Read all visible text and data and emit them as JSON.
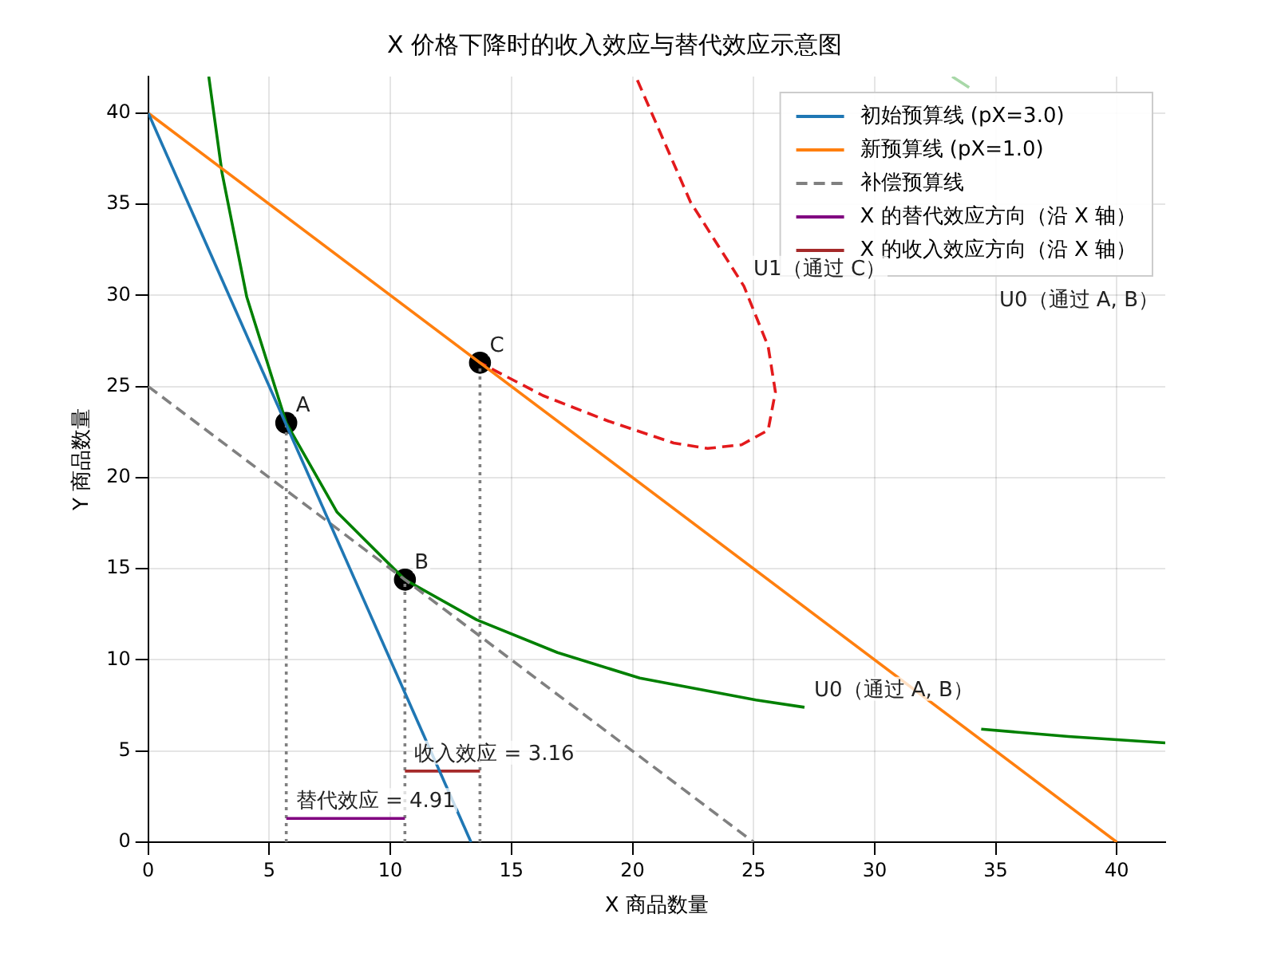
{
  "chart_data": {
    "type": "line",
    "title": "X 价格下降时的收入效应与替代效应示意图",
    "xlabel": "X 商品数量",
    "ylabel": "Y 商品数量",
    "xlim": [
      0,
      42
    ],
    "ylim": [
      0,
      42
    ],
    "xticks": [
      0,
      5,
      10,
      15,
      20,
      25,
      30,
      35,
      40
    ],
    "yticks": [
      0,
      5,
      10,
      15,
      20,
      25,
      30,
      35,
      40
    ],
    "grid": true,
    "legend": "top right",
    "marker": "none",
    "series": [
      {
        "name": "初始预算线 (pX=3.0)",
        "color": "#1f77b4",
        "x": [
          0,
          13.33
        ],
        "values": [
          40,
          0
        ]
      },
      {
        "name": "新预算线 (pX=1.0)",
        "color": "#ff7f0e",
        "x": [
          0,
          40
        ],
        "values": [
          40,
          0
        ]
      },
      {
        "name": "补偿预算线",
        "color": "#808080",
        "line_style": "dashed",
        "x": [
          0,
          25
        ],
        "values": [
          25,
          0
        ]
      },
      {
        "name": "X 的替代效应方向（沿 X 轴）",
        "color": "#800080",
        "x": [
          5.7,
          10.6
        ],
        "values": [
          1.3,
          1.3
        ]
      },
      {
        "name": "X 的收入效应方向（沿 X 轴）",
        "color": "#a52a2a",
        "x": [
          10.6,
          13.7
        ],
        "values": [
          3.9,
          3.9
        ]
      },
      {
        "color": "#008000",
        "x": [
          2.5,
          3.05,
          4.07,
          5.7,
          7.8,
          10.6,
          13.56,
          16.9,
          20.3,
          25.1,
          27.1,
          30,
          34.4,
          38,
          42
        ],
        "values": [
          42,
          36.7,
          29.9,
          23.0,
          18.1,
          14.4,
          12.2,
          10.4,
          9.0,
          7.8,
          7.4,
          null,
          6.2,
          5.8,
          5.45
        ]
      },
      {
        "color": "#a8d8a8",
        "x": [
          33.2,
          33.9
        ],
        "values": [
          42,
          41.4
        ]
      },
      {
        "color": "#e31a1c",
        "line_style": "dashed",
        "x": [
          20.2,
          22.4,
          24.6,
          25.6,
          25.9,
          25.6,
          24.5,
          23.1,
          21.7,
          19.0,
          16.3,
          13.7
        ],
        "values": [
          41.8,
          35.1,
          30.5,
          27.2,
          24.7,
          22.6,
          21.8,
          21.6,
          21.9,
          23.1,
          24.5,
          26.3
        ]
      },
      {
        "color": "#808080",
        "line_style": "dotted",
        "x": [
          5.7,
          5.7
        ],
        "values": [
          0,
          23.0
        ]
      },
      {
        "color": "#808080",
        "line_style": "dotted",
        "x": [
          10.6,
          10.6
        ],
        "values": [
          0,
          14.4
        ]
      },
      {
        "color": "#808080",
        "line_style": "dotted",
        "x": [
          13.7,
          13.7
        ],
        "values": [
          0,
          26.3
        ]
      },
      {
        "type": "scatter",
        "marker": "circle",
        "color": "#000000",
        "x": [
          5.7,
          10.6,
          13.7
        ],
        "values": [
          23.0,
          14.4,
          26.3
        ]
      }
    ],
    "annotations": [
      {
        "text": "A",
        "x": 5.7,
        "y": 23.0
      },
      {
        "text": "B",
        "x": 10.6,
        "y": 14.4
      },
      {
        "text": "C",
        "x": 13.7,
        "y": 26.3
      },
      {
        "text": "U0（通过 A, B）",
        "x": 27.1,
        "y": 7.4
      },
      "U0（通过 A, B）",
      {
        "text": "U1（通过 C）",
        "x": 24.6,
        "y": 30.5
      },
      {
        "text": "替代效应 = 4.91",
        "x": 5.7,
        "y": 1.3
      },
      {
        "text": "收入效应 = 3.16",
        "x": 10.6,
        "y": 3.9
      }
    ]
  }
}
